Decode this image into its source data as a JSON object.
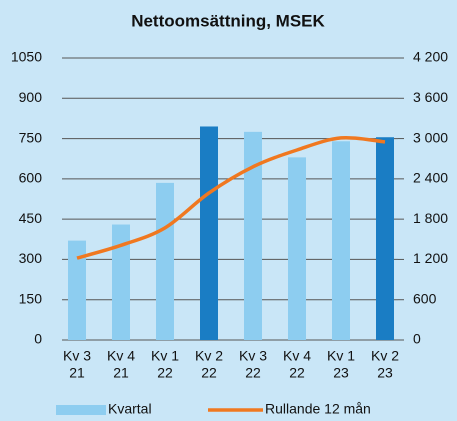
{
  "chart_data": {
    "type": "bar",
    "title": "Nettoomsättning, MSEK",
    "categories": [
      [
        "Kv 3",
        "21"
      ],
      [
        "Kv 4",
        "21"
      ],
      [
        "Kv 1",
        "22"
      ],
      [
        "Kv 2",
        "22"
      ],
      [
        "Kv 3",
        "22"
      ],
      [
        "Kv 4",
        "22"
      ],
      [
        "Kv 1",
        "23"
      ],
      [
        "Kv 2",
        "23"
      ]
    ],
    "series": [
      {
        "name": "Kvartal",
        "type": "bar",
        "color": "#8dcdf0",
        "colors": [
          "#8dcdf0",
          "#8dcdf0",
          "#8dcdf0",
          "#1a7dc4",
          "#8dcdf0",
          "#8dcdf0",
          "#8dcdf0",
          "#1a7dc4"
        ],
        "values": [
          370,
          430,
          585,
          795,
          775,
          680,
          740,
          755
        ]
      },
      {
        "name": "Rullande 12 mån",
        "type": "line",
        "axis": "y2",
        "color": "#f07820",
        "values": [
          1220,
          1410,
          1670,
          2190,
          2580,
          2830,
          3010,
          2950
        ]
      }
    ],
    "ylim": [
      0,
      1050
    ],
    "yticks": [
      0,
      150,
      300,
      450,
      600,
      750,
      900,
      1050
    ],
    "y2lim": [
      0,
      4200
    ],
    "y2ticks": [
      0,
      600,
      {
        "value": 1200,
        "label": "1 200"
      },
      {
        "value": 1800,
        "label": "1 800"
      },
      {
        "value": 2400,
        "label": "2 400"
      },
      {
        "value": 3000,
        "label": "3 000"
      },
      {
        "value": 3600,
        "label": "3 600"
      },
      {
        "value": 4200,
        "label": "4 200"
      }
    ],
    "grid": true,
    "legend": "bottom"
  }
}
